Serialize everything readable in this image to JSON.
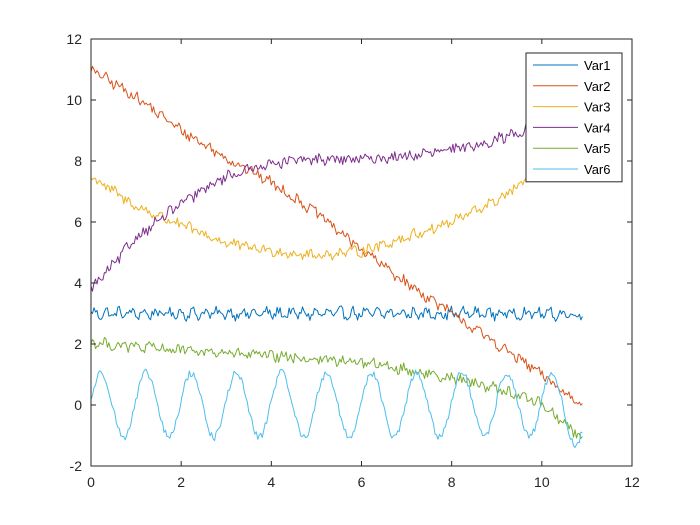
{
  "chart_data": {
    "type": "line",
    "title": "",
    "xlabel": "",
    "ylabel": "",
    "xlim": [
      0,
      12
    ],
    "ylim": [
      -2,
      12
    ],
    "x_ticks": [
      "0",
      "2",
      "4",
      "6",
      "8",
      "10",
      "12"
    ],
    "y_ticks": [
      "-2",
      "0",
      "2",
      "4",
      "6",
      "8",
      "10",
      "12"
    ],
    "grid": false,
    "legend_position": "top-right",
    "x_range": [
      0,
      10.9
    ],
    "series": [
      {
        "name": "Var1",
        "color": "#0072BD",
        "x": [
          0,
          1,
          2,
          3,
          4,
          5,
          6,
          7,
          8,
          9,
          10,
          10.9
        ],
        "y": [
          3.0,
          3.0,
          3.0,
          3.0,
          3.0,
          3.0,
          3.0,
          3.0,
          3.0,
          3.0,
          3.0,
          2.95
        ],
        "noise": "oscillating ±0.2"
      },
      {
        "name": "Var2",
        "color": "#D95319",
        "x": [
          0,
          1,
          2,
          3,
          4,
          5,
          6,
          7,
          8,
          9,
          10,
          10.5,
          10.9
        ],
        "y": [
          11.0,
          10.1,
          9.0,
          8.1,
          7.3,
          6.3,
          5.1,
          4.0,
          3.0,
          2.0,
          1.0,
          0.4,
          0.05
        ],
        "noise": "jagged ±0.15"
      },
      {
        "name": "Var3",
        "color": "#EDB120",
        "x": [
          0,
          1,
          2,
          3,
          4,
          5,
          6,
          7,
          8,
          9,
          10,
          10.9
        ],
        "y": [
          7.5,
          6.5,
          5.9,
          5.3,
          5.05,
          4.9,
          5.05,
          5.5,
          6.0,
          6.7,
          7.7,
          8.6
        ],
        "noise": "jagged ±0.15"
      },
      {
        "name": "Var4",
        "color": "#7E2F8E",
        "x": [
          0,
          0.5,
          1,
          2,
          3,
          4,
          5,
          6,
          7,
          8,
          9,
          10,
          10.9
        ],
        "y": [
          3.8,
          4.6,
          5.5,
          6.6,
          7.5,
          7.95,
          8.05,
          8.05,
          8.15,
          8.35,
          8.7,
          9.2,
          9.85
        ],
        "noise": "jagged ±0.15"
      },
      {
        "name": "Var5",
        "color": "#77AC30",
        "x": [
          0,
          1,
          2,
          3,
          4,
          5,
          6,
          7,
          8,
          9,
          10,
          10.5,
          10.9
        ],
        "y": [
          2.05,
          1.9,
          1.8,
          1.7,
          1.6,
          1.5,
          1.4,
          1.15,
          0.9,
          0.55,
          0.05,
          -0.6,
          -1.1
        ],
        "noise": "jagged ±0.15"
      },
      {
        "name": "Var6",
        "color": "#4DBEEE",
        "x": [
          0,
          10.9
        ],
        "y": [
          0,
          -0.6
        ],
        "shape": "sine, amplitude 1.1, period ≈1.0, offset 0",
        "noise": "jagged ±0.1"
      }
    ]
  }
}
